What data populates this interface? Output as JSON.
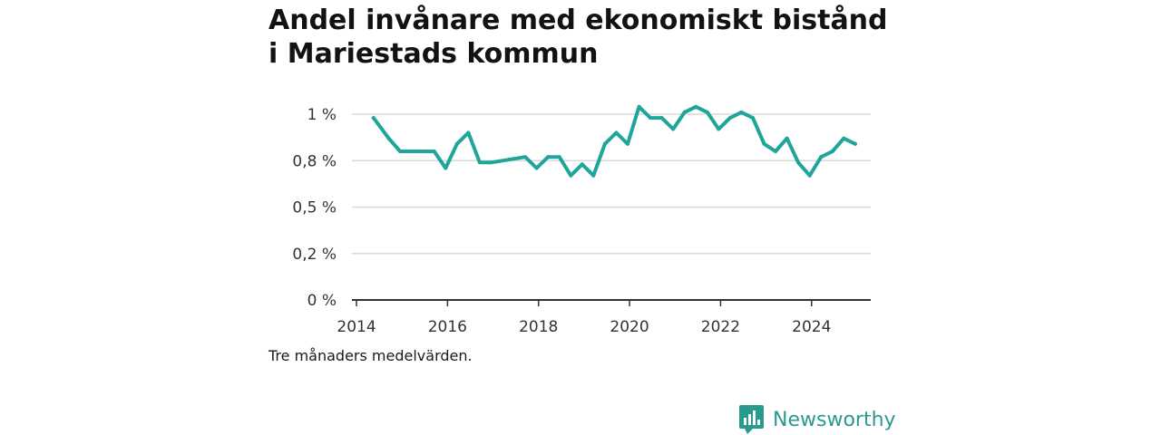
{
  "title": "Andel invånare med ekonomiskt bistånd i Mariestads kommun",
  "caption": "Tre månaders medelvärden.",
  "brand": {
    "name": "Newsworthy",
    "icon": "bar-chart-bubble-icon",
    "color": "#2a9a8d"
  },
  "chart_data": {
    "type": "line",
    "title": "Andel invånare med ekonomiskt bistånd i Mariestads kommun",
    "xlabel": "",
    "ylabel": "",
    "xlim": [
      2013.9,
      2025.3
    ],
    "ylim": [
      0,
      1.0
    ],
    "x_ticks": [
      2014,
      2016,
      2018,
      2020,
      2022,
      2024
    ],
    "y_ticks": [
      {
        "value": 0,
        "label": "0 %"
      },
      {
        "value": 0.25,
        "label": "0,2 %"
      },
      {
        "value": 0.5,
        "label": "0,5 %"
      },
      {
        "value": 0.75,
        "label": "0,8 %"
      },
      {
        "value": 1.0,
        "label": "1 %"
      }
    ],
    "grid": true,
    "line_color": "#1fa59a",
    "series": [
      {
        "x": [
          "2014-05",
          "2014-09",
          "2014-12",
          "2015-03",
          "2015-06",
          "2015-09",
          "2015-12",
          "2016-03",
          "2016-06",
          "2016-09",
          "2016-12",
          "2017-09",
          "2017-12",
          "2018-03",
          "2018-06",
          "2018-09",
          "2018-12",
          "2019-03",
          "2019-06",
          "2019-09",
          "2019-12",
          "2020-03",
          "2020-06",
          "2020-09",
          "2020-12",
          "2021-03",
          "2021-06",
          "2021-09",
          "2021-12",
          "2022-03",
          "2022-06",
          "2022-09",
          "2022-12",
          "2023-03",
          "2023-06",
          "2023-09",
          "2023-12",
          "2024-03",
          "2024-06",
          "2024-09",
          "2024-12"
        ],
        "y": [
          0.98,
          0.87,
          0.8,
          0.8,
          0.8,
          0.8,
          0.71,
          0.84,
          0.9,
          0.74,
          0.74,
          0.77,
          0.71,
          0.77,
          0.77,
          0.67,
          0.73,
          0.67,
          0.84,
          0.9,
          0.84,
          1.04,
          0.98,
          0.98,
          0.92,
          1.01,
          1.04,
          1.01,
          0.92,
          0.98,
          1.01,
          0.98,
          0.84,
          0.8,
          0.87,
          0.74,
          0.67,
          0.77,
          0.8,
          0.87,
          0.84
        ]
      }
    ]
  }
}
